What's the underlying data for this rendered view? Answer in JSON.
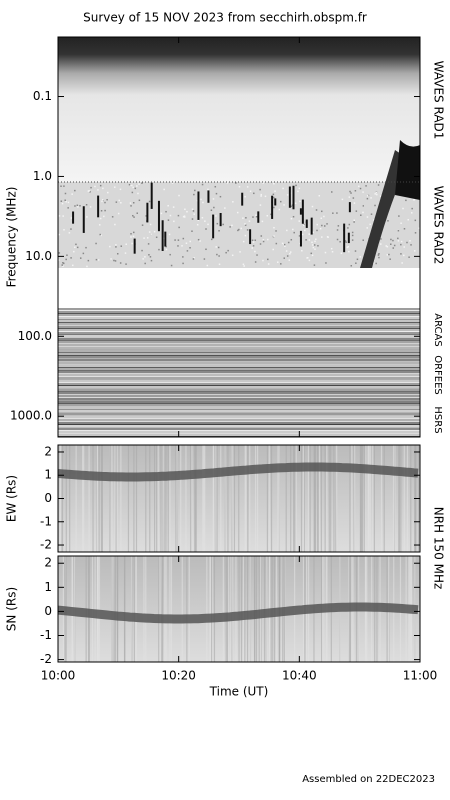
{
  "title": "Survey of 15 NOV 2023 from secchirh.obspm.fr",
  "footer": "Assembled on 22DEC2023",
  "nrh_label": "NRH 150 MHz",
  "chart_data": [
    {
      "type": "spectrogram",
      "ylabel": "Frequency (MHz)",
      "log": true,
      "reversed": true,
      "ylim": [
        0.018,
        1820
      ],
      "yticks": [
        0.1,
        {
          "value": 1,
          "label": "1.0"
        },
        {
          "value": 10,
          "label": "10.0"
        },
        {
          "value": 100,
          "label": "100.0"
        },
        {
          "value": 1000,
          "label": "1000.0"
        }
      ],
      "instruments": [
        "WAVES RAD1",
        "WAVES RAD2",
        "ARCAS",
        "ORFEES",
        "HSRS"
      ]
    },
    {
      "type": "spectrogram",
      "ylabel": "EW (Rs)",
      "ylim": [
        -2.3,
        2.3
      ],
      "yticks": [
        -2,
        -1,
        0,
        1,
        2
      ]
    },
    {
      "type": "spectrogram",
      "ylabel": "SN (Rs)",
      "ylim": [
        -2.1,
        2.3
      ],
      "yticks": [
        -2,
        -1,
        0,
        1,
        2
      ],
      "xlabel": "Time (UT)",
      "xlim": [
        0,
        60
      ],
      "xticks": [
        {
          "value": 0,
          "label": "10:00"
        },
        {
          "value": 20,
          "label": "10:20"
        },
        {
          "value": 40,
          "label": "10:40"
        },
        {
          "value": 60,
          "label": "11:00"
        }
      ]
    }
  ]
}
